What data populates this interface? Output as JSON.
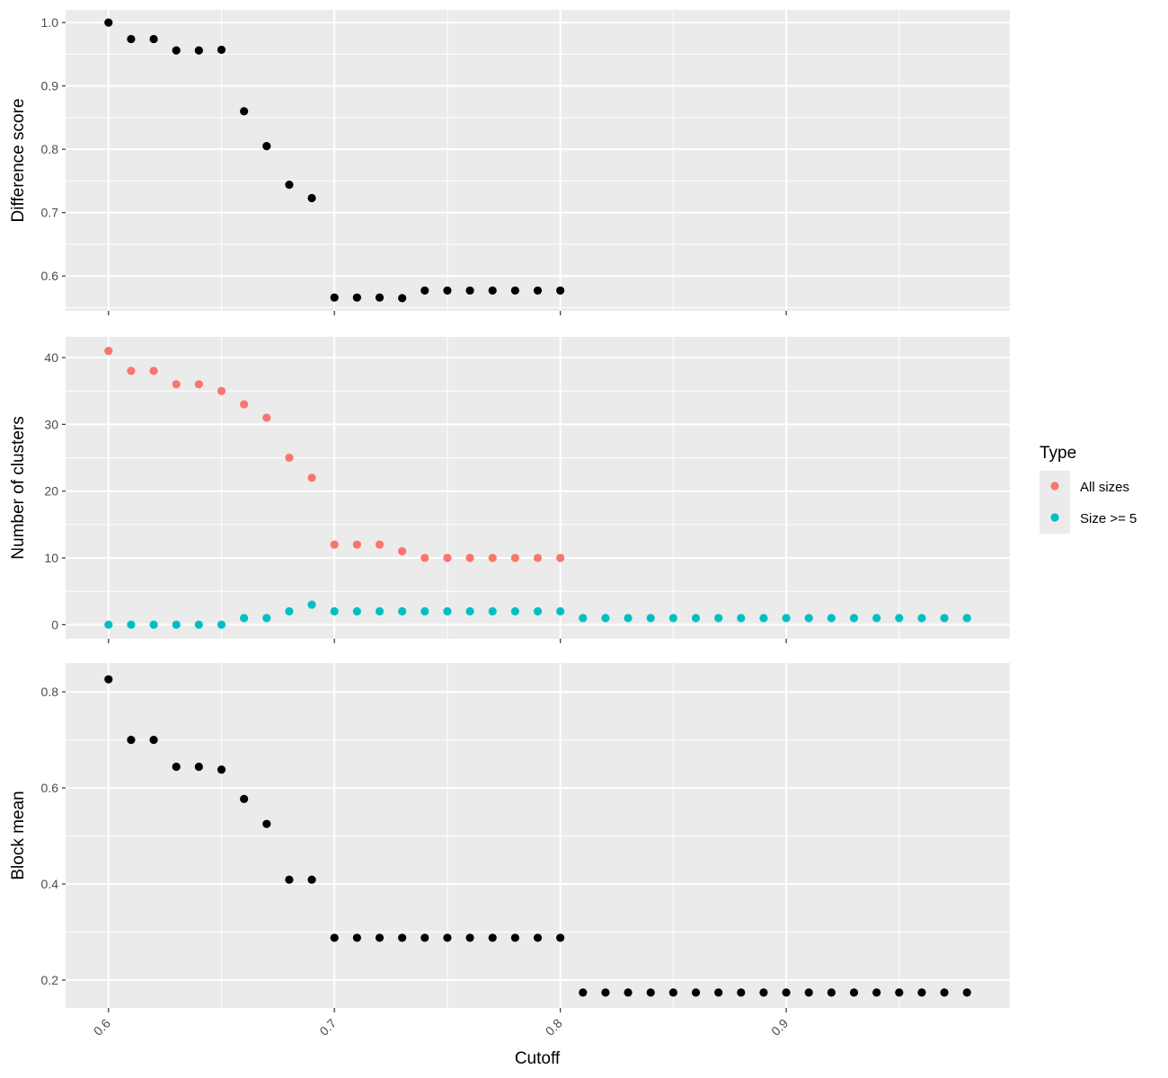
{
  "chart_data": {
    "type": "scatter",
    "xlabel": "Cutoff",
    "x_ticks": [
      0.6,
      0.7,
      0.8,
      0.9
    ],
    "x_tick_labels": [
      "0.6",
      "0.7",
      "0.8",
      "0.9"
    ],
    "xlim": [
      0.581,
      0.999
    ],
    "grid": true,
    "legend": {
      "title": "Type",
      "placement": "right",
      "entries": [
        {
          "label": "All sizes",
          "color": "#F8766D"
        },
        {
          "label": "Size >= 5",
          "color": "#00BFC4"
        }
      ]
    },
    "panels": [
      {
        "ylabel": "Difference score",
        "ylim": [
          0.545,
          1.02
        ],
        "y_ticks": [
          0.6,
          0.7,
          0.8,
          0.9,
          1.0
        ],
        "y_tick_labels": [
          "0.6",
          "0.7",
          "0.8",
          "0.9",
          "1.0"
        ],
        "series": [
          {
            "color": "#000000",
            "x": [
              0.6,
              0.61,
              0.62,
              0.63,
              0.64,
              0.65,
              0.66,
              0.67,
              0.68,
              0.69,
              0.7,
              0.71,
              0.72,
              0.73,
              0.74,
              0.75,
              0.76,
              0.77,
              0.78,
              0.79,
              0.8
            ],
            "y": [
              1.0,
              0.974,
              0.974,
              0.956,
              0.956,
              0.957,
              0.86,
              0.805,
              0.744,
              0.723,
              0.566,
              0.566,
              0.566,
              0.565,
              0.577,
              0.577,
              0.577,
              0.577,
              0.577,
              0.577,
              0.577
            ]
          }
        ]
      },
      {
        "ylabel": "Number of clusters",
        "ylim": [
          -2.1,
          43.1
        ],
        "y_ticks": [
          0,
          10,
          20,
          30,
          40
        ],
        "y_tick_labels": [
          "0",
          "10",
          "20",
          "30",
          "40"
        ],
        "series": [
          {
            "name": "All sizes",
            "color": "#F8766D",
            "x": [
              0.6,
              0.61,
              0.62,
              0.63,
              0.64,
              0.65,
              0.66,
              0.67,
              0.68,
              0.69,
              0.7,
              0.71,
              0.72,
              0.73,
              0.74,
              0.75,
              0.76,
              0.77,
              0.78,
              0.79,
              0.8
            ],
            "y": [
              41,
              38,
              38,
              36,
              36,
              35,
              33,
              31,
              25,
              22,
              12,
              12,
              12,
              11,
              10,
              10,
              10,
              10,
              10,
              10,
              10
            ]
          },
          {
            "name": "Size >= 5",
            "color": "#00BFC4",
            "x": [
              0.6,
              0.61,
              0.62,
              0.63,
              0.64,
              0.65,
              0.66,
              0.67,
              0.68,
              0.69,
              0.7,
              0.71,
              0.72,
              0.73,
              0.74,
              0.75,
              0.76,
              0.77,
              0.78,
              0.79,
              0.8,
              0.81,
              0.82,
              0.83,
              0.84,
              0.85,
              0.86,
              0.87,
              0.88,
              0.89,
              0.9,
              0.91,
              0.92,
              0.93,
              0.94,
              0.95,
              0.96,
              0.97,
              0.98
            ],
            "y": [
              0,
              0,
              0,
              0,
              0,
              0,
              1,
              1,
              2,
              3,
              2,
              2,
              2,
              2,
              2,
              2,
              2,
              2,
              2,
              2,
              2,
              1,
              1,
              1,
              1,
              1,
              1,
              1,
              1,
              1,
              1,
              1,
              1,
              1,
              1,
              1,
              1,
              1,
              1
            ]
          }
        ]
      },
      {
        "ylabel": "Block mean",
        "ylim": [
          0.142,
          0.86
        ],
        "y_ticks": [
          0.2,
          0.4,
          0.6,
          0.8
        ],
        "y_tick_labels": [
          "0.2",
          "0.4",
          "0.6",
          "0.8"
        ],
        "series": [
          {
            "color": "#000000",
            "x": [
              0.6,
              0.61,
              0.62,
              0.63,
              0.64,
              0.65,
              0.66,
              0.67,
              0.68,
              0.69,
              0.7,
              0.71,
              0.72,
              0.73,
              0.74,
              0.75,
              0.76,
              0.77,
              0.78,
              0.79,
              0.8,
              0.81,
              0.82,
              0.83,
              0.84,
              0.85,
              0.86,
              0.87,
              0.88,
              0.89,
              0.9,
              0.91,
              0.92,
              0.93,
              0.94,
              0.95,
              0.96,
              0.97,
              0.98
            ],
            "y": [
              0.826,
              0.7,
              0.7,
              0.644,
              0.644,
              0.638,
              0.577,
              0.525,
              0.409,
              0.409,
              0.288,
              0.288,
              0.288,
              0.288,
              0.288,
              0.288,
              0.288,
              0.288,
              0.288,
              0.288,
              0.288,
              0.174,
              0.174,
              0.174,
              0.174,
              0.174,
              0.174,
              0.174,
              0.174,
              0.174,
              0.174,
              0.174,
              0.174,
              0.174,
              0.174,
              0.174,
              0.174,
              0.174,
              0.174
            ]
          }
        ]
      }
    ]
  }
}
